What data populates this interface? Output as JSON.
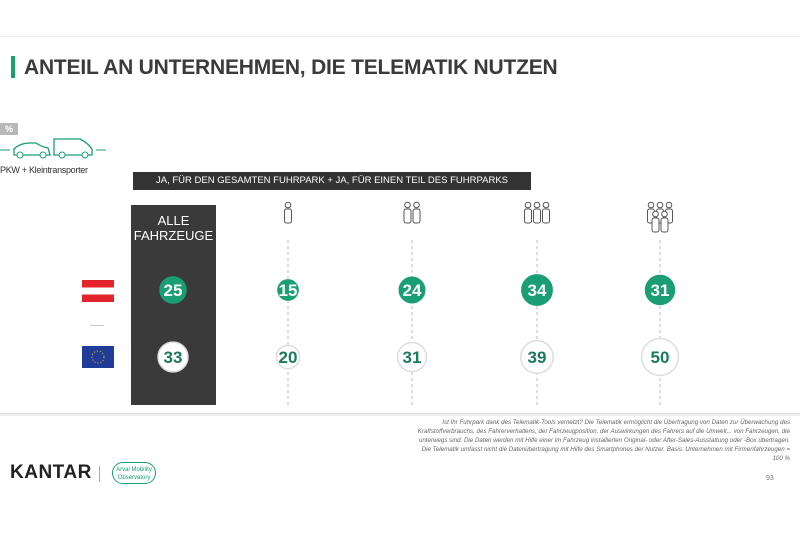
{
  "title": "ANTEIL AN UNTERNEHMEN, DIE TELEMATIK NUTZEN",
  "unit_badge": "%",
  "vehicle_label": "PKW + Kleintransporter",
  "header": "JA, FÜR DEN GESAMTEN FUHRPARK + JA, FÜR EINEN TEIL DES FUHRPARKS",
  "all_vehicles_label": "ALLE FAHRZEUGE",
  "footnote": "Ist Ihr Fuhrpark dank des Telematik-Tools vernetzt? Die Telematik ermöglicht die Übertragung von Daten zur Überwachung des Kraftstoffverbrauchs, des Fahrerverhaltens, der Fahrzeugposition, der Auswirkungen des Fahrers auf die Umwelt... von Fahrzeugen, die unterwegs sind. Die Daten werden mit Hilfe einer im Fahrzeug installierten Original- oder After-Sales-Ausstattung oder -Box übertragen. Die Telematik umfasst nicht die Datenübertragung mit Hilfe des Smartphones der Nutzer. Basis: Unternehmen mit Firmenfahrzeugen = 100 %",
  "page_number": "93",
  "logo": {
    "kantar": "KANTAR",
    "partner": "Arval Mobility Observatory"
  },
  "colors": {
    "accent": "#1a9e74",
    "dark": "#3a3a3a"
  },
  "chart_data": {
    "type": "table",
    "categories": [
      "ALLE FAHRZEUGE",
      "company-size-1-icon",
      "company-size-2-icon",
      "company-size-3-icon",
      "company-size-4-icon"
    ],
    "series": [
      {
        "name": "Austria-flag",
        "values": [
          25,
          15,
          24,
          34,
          31
        ]
      },
      {
        "name": "EU-flag",
        "values": [
          33,
          20,
          31,
          39,
          50
        ]
      }
    ]
  }
}
